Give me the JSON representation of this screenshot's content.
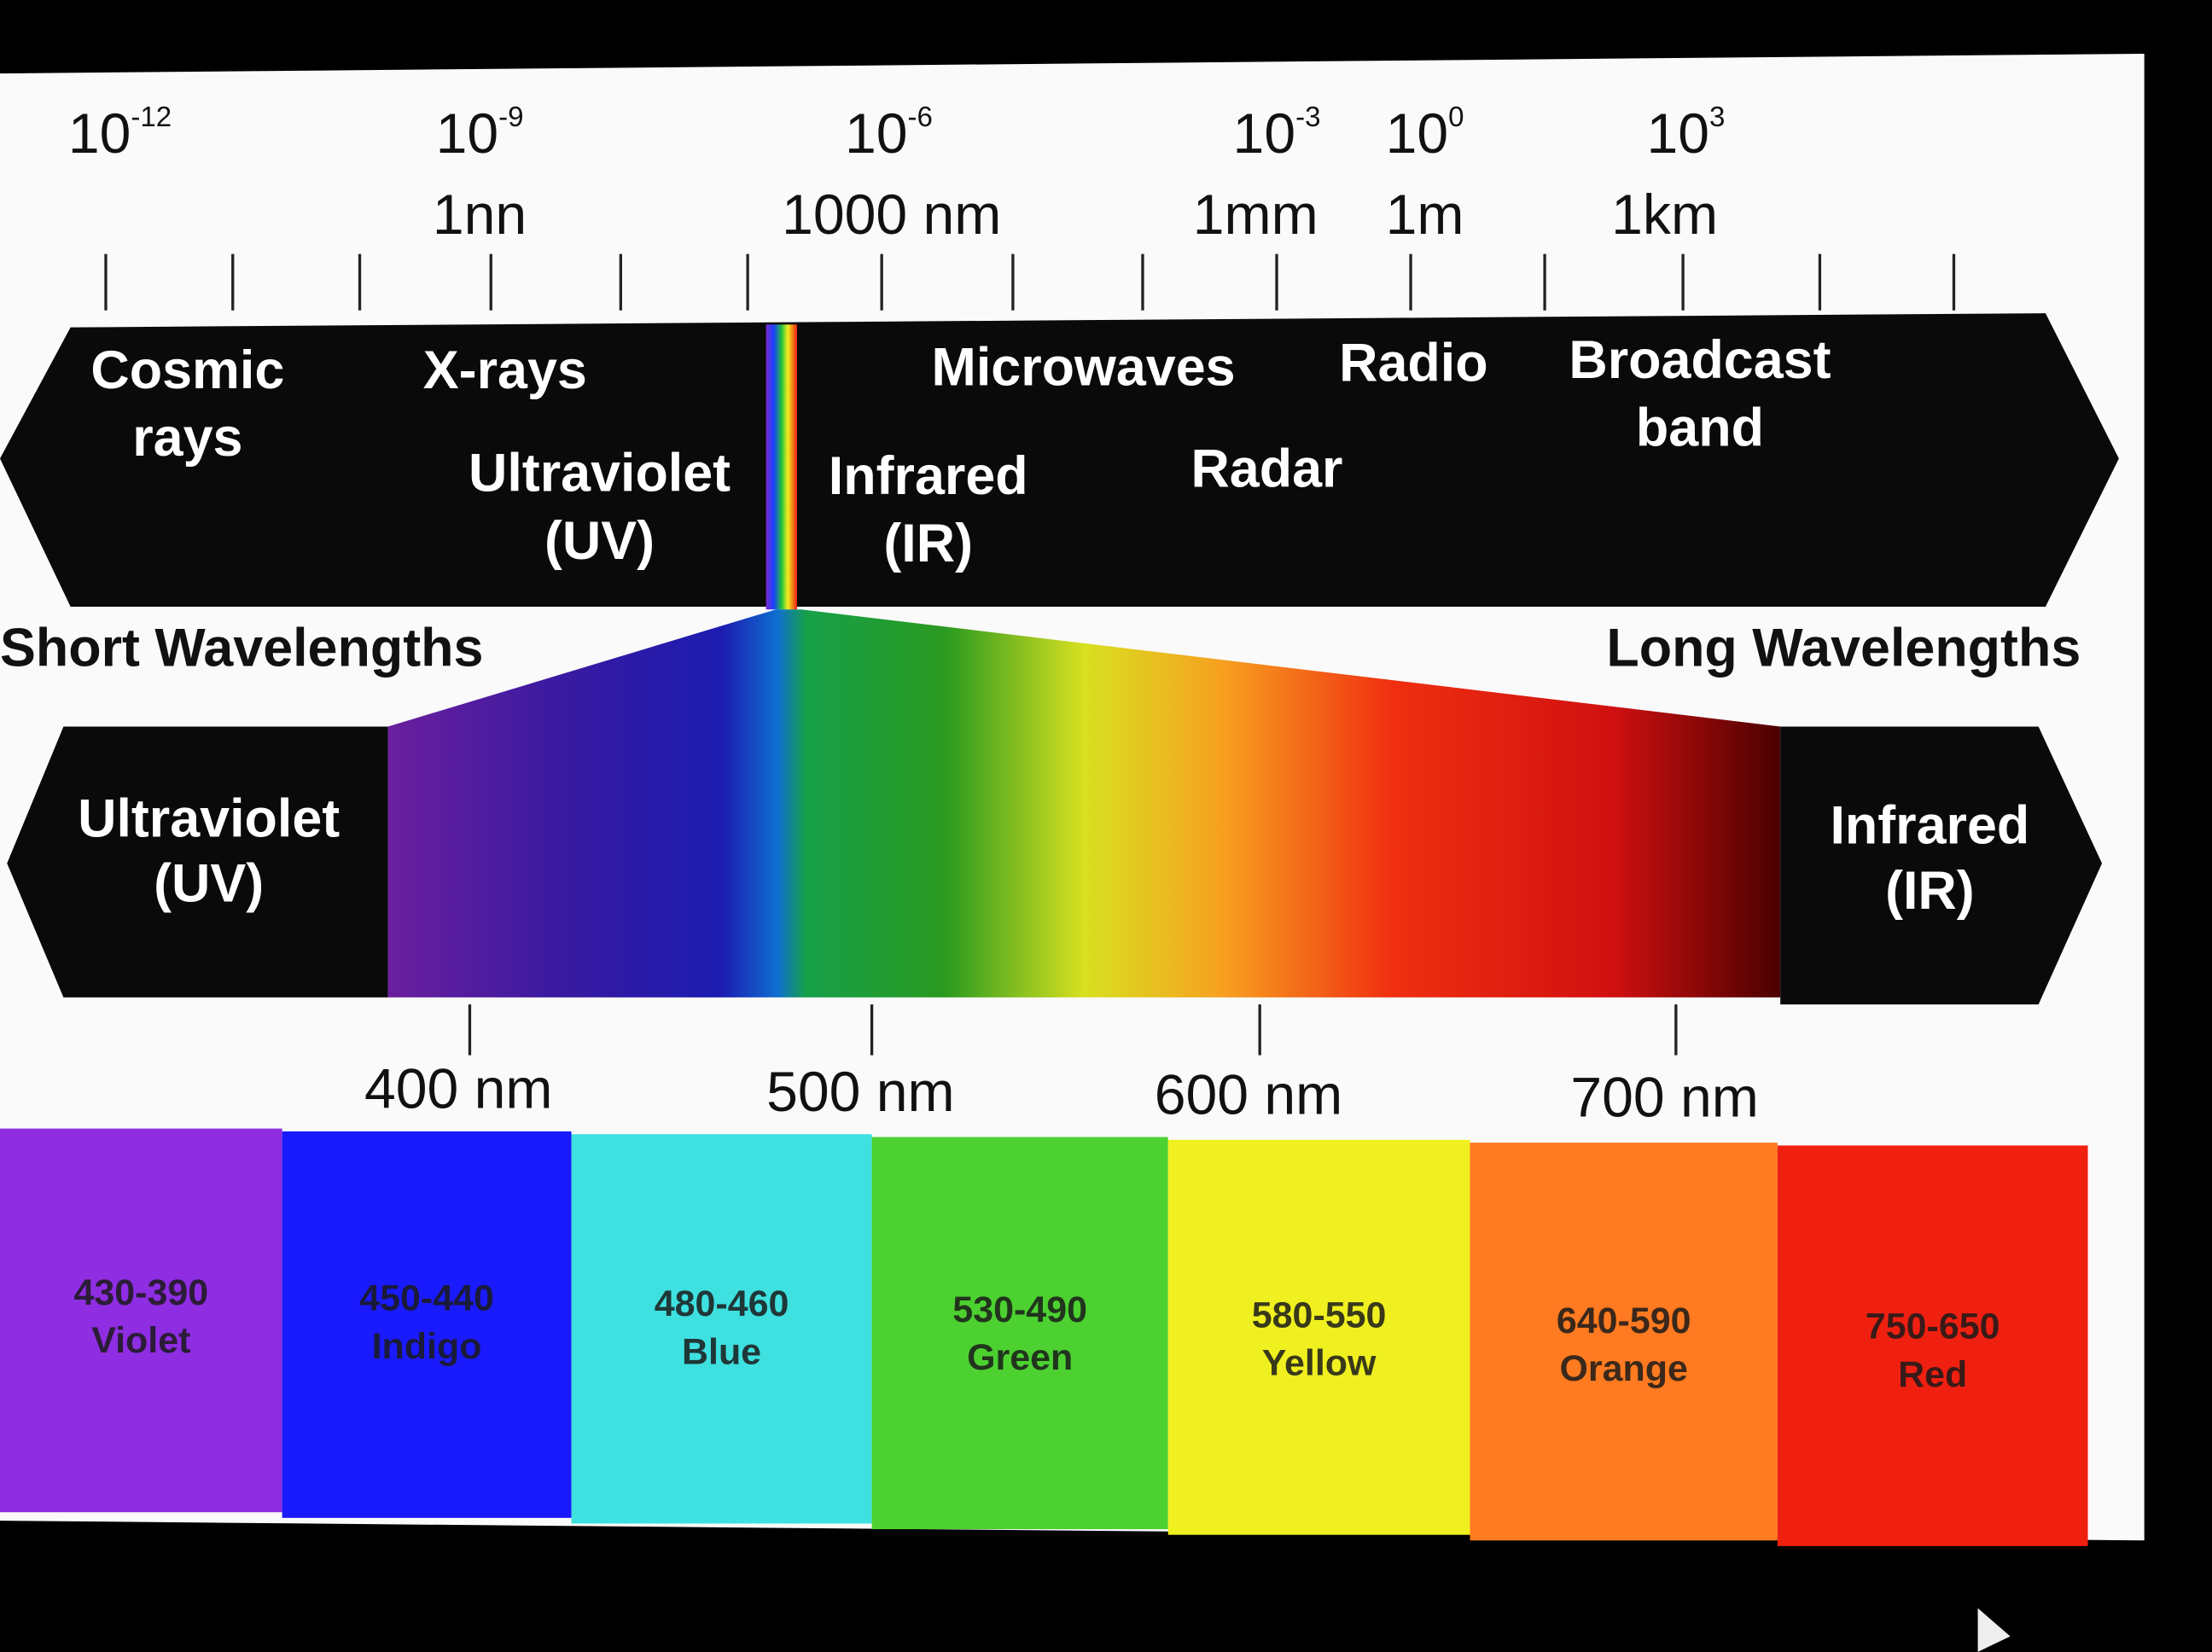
{
  "scale": {
    "powers": [
      {
        "base": "10",
        "exp": "-12"
      },
      {
        "base": "10",
        "exp": "-9"
      },
      {
        "base": "10",
        "exp": "-6"
      },
      {
        "base": "10",
        "exp": "-3"
      },
      {
        "base": "10",
        "exp": "0"
      },
      {
        "base": "10",
        "exp": "3"
      }
    ],
    "units": [
      "1nn",
      "1000 nm",
      "1mm",
      "1m",
      "1km"
    ]
  },
  "upper_band": [
    [
      "Cosmic",
      "rays"
    ],
    [
      "X-rays"
    ],
    [
      "Ultraviolet",
      "(UV)"
    ],
    [
      "Infrared",
      "(IR)"
    ],
    [
      "Microwaves"
    ],
    [
      "Radar"
    ],
    [
      "Radio"
    ],
    [
      "Broadcast",
      "band"
    ]
  ],
  "short_label": "Short Wavelengths",
  "long_label": "Long Wavelengths",
  "lower_band": {
    "left": [
      "Ultraviolet",
      "(UV)"
    ],
    "right": [
      "Infrared",
      "(IR)"
    ]
  },
  "nm_ticks": [
    "400 nm",
    "500 nm",
    "600 nm",
    "700 nm"
  ],
  "colors": [
    {
      "range": "430-390",
      "name": "Violet"
    },
    {
      "range": "450-440",
      "name": "Indigo"
    },
    {
      "range": "480-460",
      "name": "Blue"
    },
    {
      "range": "530-490",
      "name": "Green"
    },
    {
      "range": "580-550",
      "name": "Yellow"
    },
    {
      "range": "640-590",
      "name": "Orange"
    },
    {
      "range": "750-650",
      "name": "Red"
    }
  ]
}
